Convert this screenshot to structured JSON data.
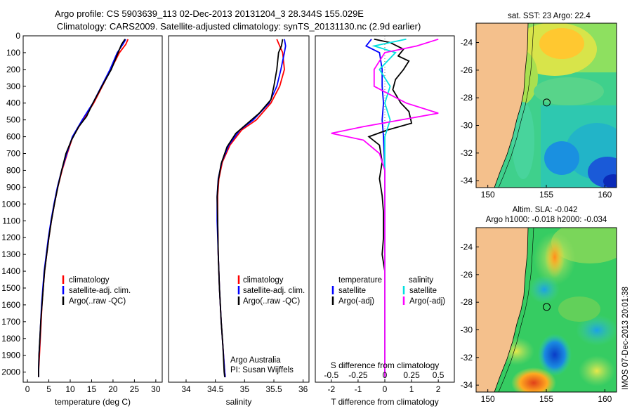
{
  "header": {
    "line1": "Argo profile: CS 5903639_113 02-Dec-2013 20131204_3 28.344S 155.029E",
    "line2": "Climatology: CARS2009. Satellite-adjusted climatology: synTS_20131130.nc (2.9d earlier)"
  },
  "colors": {
    "climatology": "#ff0000",
    "satellite": "#0000ff",
    "argo": "#000000",
    "satellite_salinity": "#00e0e0",
    "argo_adj_salinity": "#ff00ff",
    "land": "#f4c08c"
  },
  "depth_axis": {
    "ticks": [
      "0",
      "100",
      "200",
      "300",
      "400",
      "500",
      "600",
      "700",
      "800",
      "900",
      "1000",
      "1100",
      "1200",
      "1300",
      "1400",
      "1500",
      "1600",
      "1700",
      "1800",
      "1900",
      "2000"
    ]
  },
  "chart_data": [
    {
      "id": "temperature",
      "type": "line",
      "xlabel": "temperature (deg C)",
      "ylabel": "",
      "xlim": [
        -1,
        31.5
      ],
      "ylim": [
        2060,
        0
      ],
      "xticks": [
        "0",
        "5",
        "10",
        "15",
        "20",
        "25",
        "30"
      ],
      "xtick_values": [
        0,
        5,
        10,
        15,
        20,
        25,
        30
      ],
      "legend": [
        "climatology",
        "satellite-adj. clim.",
        "Argo(..raw -QC)"
      ],
      "series": [
        {
          "name": "climatology",
          "color": "#ff0000",
          "points": [
            [
              23.5,
              20
            ],
            [
              23.0,
              50
            ],
            [
              21.5,
              100
            ],
            [
              19.5,
              200
            ],
            [
              17.5,
              300
            ],
            [
              15.5,
              400
            ],
            [
              13.0,
              500
            ],
            [
              10.6,
              600
            ],
            [
              9.3,
              700
            ],
            [
              8.1,
              800
            ],
            [
              7.1,
              900
            ],
            [
              6.3,
              1000
            ],
            [
              5.6,
              1100
            ],
            [
              5.0,
              1200
            ],
            [
              4.5,
              1300
            ],
            [
              4.0,
              1400
            ],
            [
              3.7,
              1500
            ],
            [
              3.4,
              1600
            ],
            [
              3.2,
              1700
            ],
            [
              3.0,
              1800
            ],
            [
              2.8,
              1900
            ],
            [
              2.6,
              2000
            ],
            [
              2.6,
              2030
            ]
          ]
        },
        {
          "name": "satellite-adj. clim.",
          "color": "#0000ff",
          "points": [
            [
              23.0,
              20
            ],
            [
              22.3,
              50
            ],
            [
              21.0,
              100
            ],
            [
              19.3,
              200
            ],
            [
              17.3,
              300
            ],
            [
              15.3,
              400
            ],
            [
              12.8,
              500
            ],
            [
              10.5,
              600
            ],
            [
              9.2,
              700
            ],
            [
              8.0,
              800
            ],
            [
              7.0,
              900
            ],
            [
              6.2,
              1000
            ],
            [
              5.5,
              1100
            ],
            [
              4.9,
              1200
            ],
            [
              4.4,
              1300
            ],
            [
              3.9,
              1400
            ],
            [
              3.6,
              1500
            ],
            [
              3.3,
              1600
            ],
            [
              3.1,
              1700
            ],
            [
              2.9,
              1800
            ],
            [
              2.7,
              1900
            ],
            [
              2.6,
              2000
            ],
            [
              2.6,
              2030
            ]
          ]
        },
        {
          "name": "Argo(..raw -QC)",
          "color": "#000000",
          "points": [
            [
              22.8,
              20
            ],
            [
              22.0,
              50
            ],
            [
              21.2,
              100
            ],
            [
              19.6,
              200
            ],
            [
              17.4,
              300
            ],
            [
              15.3,
              400
            ],
            [
              13.8,
              480
            ],
            [
              12.0,
              540
            ],
            [
              10.3,
              620
            ],
            [
              9.0,
              700
            ],
            [
              8.0,
              800
            ],
            [
              7.1,
              900
            ],
            [
              6.3,
              1000
            ],
            [
              5.6,
              1100
            ],
            [
              5.0,
              1200
            ],
            [
              4.5,
              1300
            ],
            [
              4.0,
              1400
            ],
            [
              3.7,
              1500
            ],
            [
              3.4,
              1600
            ],
            [
              3.1,
              1700
            ],
            [
              2.9,
              1800
            ],
            [
              2.7,
              1900
            ],
            [
              2.6,
              2000
            ],
            [
              2.6,
              2030
            ]
          ]
        }
      ]
    },
    {
      "id": "salinity",
      "type": "line",
      "xlabel": "salinity",
      "ylabel": "",
      "xlim": [
        33.7,
        36.1
      ],
      "ylim": [
        2060,
        0
      ],
      "xticks": [
        "34",
        "34.5",
        "35",
        "35.5",
        "36"
      ],
      "xtick_values": [
        34,
        34.5,
        35,
        35.5,
        36
      ],
      "legend": [
        "climatology",
        "satellite-adj. clim.",
        "Argo(..raw -QC)"
      ],
      "annotation": [
        "Argo Australia",
        "PI: Susan Wijffels"
      ],
      "series": [
        {
          "name": "climatology",
          "color": "#ff0000",
          "points": [
            [
              35.55,
              20
            ],
            [
              35.6,
              60
            ],
            [
              35.65,
              100
            ],
            [
              35.68,
              200
            ],
            [
              35.6,
              300
            ],
            [
              35.45,
              400
            ],
            [
              35.2,
              500
            ],
            [
              34.95,
              560
            ],
            [
              34.75,
              650
            ],
            [
              34.62,
              750
            ],
            [
              34.56,
              850
            ],
            [
              34.54,
              950
            ],
            [
              34.54,
              1100
            ],
            [
              34.55,
              1300
            ],
            [
              34.57,
              1500
            ],
            [
              34.6,
              1700
            ],
            [
              34.63,
              1850
            ],
            [
              34.66,
              2000
            ],
            [
              34.67,
              2030
            ]
          ]
        },
        {
          "name": "satellite-adj. clim.",
          "color": "#0000ff",
          "points": [
            [
              35.68,
              20
            ],
            [
              35.7,
              60
            ],
            [
              35.68,
              100
            ],
            [
              35.62,
              200
            ],
            [
              35.55,
              300
            ],
            [
              35.42,
              400
            ],
            [
              35.15,
              500
            ],
            [
              34.92,
              560
            ],
            [
              34.73,
              650
            ],
            [
              34.61,
              750
            ],
            [
              34.55,
              850
            ],
            [
              34.53,
              950
            ],
            [
              34.53,
              1100
            ],
            [
              34.55,
              1300
            ],
            [
              34.57,
              1500
            ],
            [
              34.6,
              1700
            ],
            [
              34.63,
              1850
            ],
            [
              34.66,
              2000
            ],
            [
              34.67,
              2030
            ]
          ]
        },
        {
          "name": "Argo(..raw -QC)",
          "color": "#000000",
          "points": [
            [
              35.65,
              20
            ],
            [
              35.63,
              60
            ],
            [
              35.58,
              100
            ],
            [
              35.55,
              200
            ],
            [
              35.5,
              300
            ],
            [
              35.45,
              380
            ],
            [
              35.25,
              460
            ],
            [
              35.05,
              520
            ],
            [
              34.85,
              580
            ],
            [
              34.7,
              660
            ],
            [
              34.6,
              760
            ],
            [
              34.55,
              860
            ],
            [
              34.53,
              960
            ],
            [
              34.54,
              1100
            ],
            [
              34.55,
              1300
            ],
            [
              34.57,
              1500
            ],
            [
              34.6,
              1700
            ],
            [
              34.63,
              1850
            ],
            [
              34.65,
              2000
            ],
            [
              34.66,
              2030
            ]
          ]
        }
      ]
    },
    {
      "id": "difference",
      "type": "line",
      "xlabel": "T difference from climatology",
      "top_label": "S difference from climatology",
      "xlim": [
        -2.6,
        2.6
      ],
      "ylim": [
        2060,
        0
      ],
      "xticks": [
        "-2",
        "-1",
        "0",
        "1",
        "2"
      ],
      "xtick_values": [
        -2,
        -1,
        0,
        1,
        2
      ],
      "sticks": [
        "-0.5",
        "-0.25",
        "0",
        "0.25",
        "0.5"
      ],
      "stick_values": [
        -0.5,
        -0.25,
        0,
        0.25,
        0.5
      ],
      "s_scale": 4,
      "legend_temperature": {
        "title": "temperature",
        "items": [
          "satellite",
          "Argo(-adj)"
        ]
      },
      "legend_salinity": {
        "title": "salinity",
        "items": [
          "satellite",
          "Argo(-adj)"
        ]
      },
      "series": [
        {
          "name": "T satellite",
          "color": "#0000ff",
          "points": [
            [
              -0.5,
              20
            ],
            [
              -0.7,
              60
            ],
            [
              -0.2,
              100
            ],
            [
              -0.1,
              200
            ],
            [
              -0.1,
              300
            ],
            [
              -0.05,
              400
            ],
            [
              -0.1,
              500
            ],
            [
              -0.05,
              600
            ],
            [
              0,
              800
            ],
            [
              0,
              1000
            ],
            [
              0,
              1400
            ],
            [
              0,
              1800
            ],
            [
              0,
              2030
            ]
          ]
        },
        {
          "name": "T Argo(-adj)",
          "color": "#000000",
          "points": [
            [
              -0.4,
              20
            ],
            [
              0.2,
              40
            ],
            [
              0.7,
              80
            ],
            [
              0.5,
              120
            ],
            [
              0.9,
              150
            ],
            [
              0.7,
              200
            ],
            [
              0.4,
              260
            ],
            [
              0.3,
              320
            ],
            [
              0.6,
              400
            ],
            [
              0.9,
              450
            ],
            [
              1.0,
              520
            ],
            [
              0.1,
              560
            ],
            [
              -0.6,
              600
            ],
            [
              -0.2,
              650
            ],
            [
              -0.1,
              750
            ],
            [
              -0.2,
              850
            ],
            [
              -0.1,
              950
            ],
            [
              -0.05,
              1050
            ],
            [
              -0.05,
              1200
            ],
            [
              -0.1,
              1300
            ],
            [
              0,
              1400
            ],
            [
              0,
              1600
            ],
            [
              0,
              1800
            ],
            [
              0,
              2030
            ]
          ]
        },
        {
          "name": "S satellite",
          "color": "#00e0e0",
          "points": [
            [
              0.2,
              20
            ],
            [
              -0.1,
              60
            ],
            [
              0.1,
              100
            ],
            [
              -0.05,
              200
            ],
            [
              0.05,
              300
            ],
            [
              0,
              400
            ],
            [
              0.05,
              500
            ],
            [
              0,
              600
            ],
            [
              0,
              800
            ],
            [
              0,
              1000
            ],
            [
              0,
              1400
            ],
            [
              0,
              1800
            ],
            [
              0,
              2030
            ]
          ]
        },
        {
          "name": "S Argo(-adj)",
          "color": "#ff00ff",
          "points": [
            [
              0.5,
              20
            ],
            [
              0.3,
              60
            ],
            [
              0.0,
              100
            ],
            [
              -0.1,
              200
            ],
            [
              -0.1,
              300
            ],
            [
              0.2,
              400
            ],
            [
              0.5,
              460
            ],
            [
              -0.2,
              540
            ],
            [
              -0.5,
              580
            ],
            [
              -0.2,
              620
            ],
            [
              -0.05,
              700
            ],
            [
              0,
              800
            ],
            [
              0,
              1000
            ],
            [
              0,
              1400
            ],
            [
              0,
              1800
            ],
            [
              0,
              2030
            ]
          ]
        }
      ]
    },
    {
      "id": "sst-map",
      "type": "heatmap",
      "title": "sat. SST: 23 Argo: 22.4",
      "xticks": [
        "150",
        "155",
        "160"
      ],
      "xtick_values": [
        150,
        155,
        160
      ],
      "yticks": [
        "-24",
        "-26",
        "-28",
        "-30",
        "-32",
        "-34"
      ],
      "ytick_values": [
        -24,
        -26,
        -28,
        -30,
        -32,
        -34
      ],
      "xlim": [
        149,
        161
      ],
      "ylim": [
        -34.5,
        -22.6
      ],
      "profile_position": [
        155.029,
        -28.344
      ]
    },
    {
      "id": "sla-map",
      "type": "heatmap",
      "title": "Altim. SLA: -0.042",
      "subtitle": "Argo h1000: -0.018 h2000: -0.034",
      "xticks": [
        "150",
        "155",
        "160"
      ],
      "xtick_values": [
        150,
        155,
        160
      ],
      "yticks": [
        "-24",
        "-26",
        "-28",
        "-30",
        "-32",
        "-34"
      ],
      "ytick_values": [
        -24,
        -26,
        -28,
        -30,
        -32,
        -34
      ],
      "xlim": [
        149,
        161
      ],
      "ylim": [
        -34.5,
        -22.6
      ],
      "profile_position": [
        155.029,
        -28.344
      ]
    }
  ],
  "side_stamp": "IMOS 07-Dec-2013 20:01:38"
}
